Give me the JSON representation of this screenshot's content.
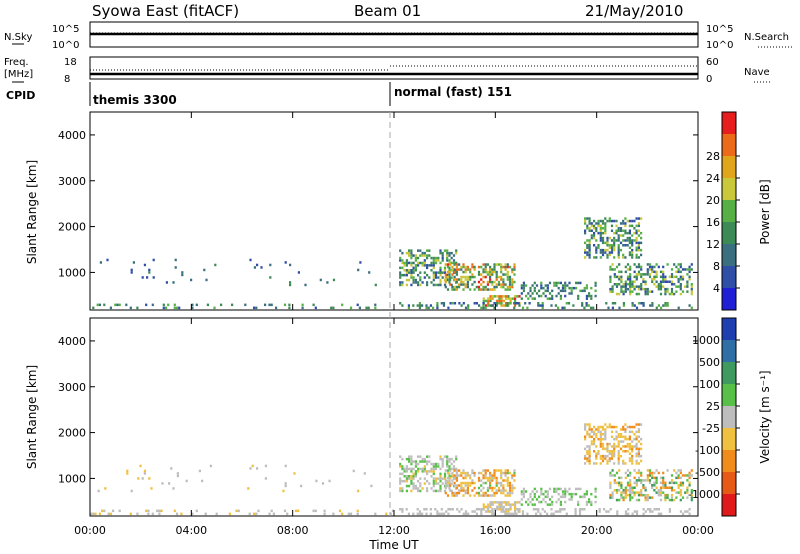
{
  "header": {
    "station": "Syowa East (fitACF)",
    "beam": "Beam 01",
    "date": "21/May/2010"
  },
  "top_panels": {
    "nsky_label": "N.Sky",
    "nsearch_label": "N.Search",
    "nsky_ticks": [
      "10^5",
      "10^0"
    ],
    "freq_label": "Freq.",
    "freq_unit": "[MHz]",
    "freq_ticks": [
      "18",
      "8"
    ],
    "nave_label": "Nave",
    "nave_ticks": [
      "60",
      "0"
    ],
    "cpid_label": "CPID",
    "cpid_segments": [
      {
        "name": "themis 3300",
        "start_hour": 0,
        "end_hour": 12
      },
      {
        "name": "normal (fast) 151",
        "start_hour": 12,
        "end_hour": 24
      }
    ]
  },
  "colors": {
    "power": [
      "#1f1fd6",
      "#2f4fa6",
      "#3a6f7f",
      "#3c8a55",
      "#56b046",
      "#c8c83a",
      "#e0a51a",
      "#ec6b1a",
      "#e61e1e"
    ],
    "velocity": [
      "#1f3fb0",
      "#2f6fa6",
      "#3f9a60",
      "#58c048",
      "#bdbdbd",
      "#f0c040",
      "#ef8c1c",
      "#e65a16",
      "#e01a1a"
    ]
  },
  "chart_data": [
    {
      "type": "heatmap",
      "panel": "power",
      "ylabel": "Slant Range [km]",
      "xlabel": "Time UT",
      "xlim": [
        0,
        24
      ],
      "ylim": [
        180,
        4500
      ],
      "x_ticks": [
        "00:00",
        "04:00",
        "08:00",
        "12:00",
        "16:00",
        "20:00",
        "00:00"
      ],
      "y_ticks": [
        "1000",
        "2000",
        "3000",
        "4000"
      ],
      "colorbar": {
        "label": "Power [dB]",
        "ticks": [
          "4",
          "8",
          "12",
          "16",
          "20",
          "24",
          "28"
        ],
        "range": [
          0,
          30
        ]
      },
      "regions": [
        {
          "t": [
            12.2,
            14.5
          ],
          "r": [
            700,
            1500
          ],
          "level": [
            4,
            20
          ],
          "density": 0.5
        },
        {
          "t": [
            14.0,
            16.8
          ],
          "r": [
            600,
            1200
          ],
          "level": [
            8,
            28
          ],
          "density": 0.55
        },
        {
          "t": [
            15.5,
            17.0
          ],
          "r": [
            250,
            500
          ],
          "level": [
            12,
            28
          ],
          "density": 0.6
        },
        {
          "t": [
            17.0,
            20.0
          ],
          "r": [
            400,
            800
          ],
          "level": [
            4,
            16
          ],
          "density": 0.35
        },
        {
          "t": [
            19.5,
            21.8
          ],
          "r": [
            1300,
            2200
          ],
          "level": [
            4,
            20
          ],
          "density": 0.5
        },
        {
          "t": [
            20.5,
            23.8
          ],
          "r": [
            500,
            1200
          ],
          "level": [
            4,
            20
          ],
          "density": 0.45
        },
        {
          "t": [
            12.2,
            23.8
          ],
          "r": [
            200,
            350
          ],
          "level": [
            4,
            16
          ],
          "density": 0.25
        },
        {
          "t": [
            0.0,
            12.0
          ],
          "r": [
            200,
            330
          ],
          "level": [
            4,
            16
          ],
          "density": 0.18
        },
        {
          "t": [
            0.3,
            11.5
          ],
          "r": [
            700,
            1300
          ],
          "level": [
            4,
            12
          ],
          "density": 0.03
        }
      ]
    },
    {
      "type": "heatmap",
      "panel": "velocity",
      "ylabel": "Slant Range [km]",
      "xlabel": "Time UT",
      "xlim": [
        0,
        24
      ],
      "ylim": [
        180,
        4500
      ],
      "x_ticks": [
        "00:00",
        "04:00",
        "08:00",
        "12:00",
        "16:00",
        "20:00",
        "00:00"
      ],
      "y_ticks": [
        "1000",
        "2000",
        "3000",
        "4000"
      ],
      "colorbar": {
        "label": "Velocity [m s⁻¹]",
        "ticks": [
          "1000",
          "500",
          "100",
          "25",
          "-25",
          "-100",
          "-500",
          "-1000"
        ],
        "range": [
          1200,
          -1200
        ]
      },
      "regions": [
        {
          "t": [
            12.2,
            14.5
          ],
          "r": [
            700,
            1500
          ],
          "level": [
            -200,
            300
          ],
          "density": 0.5
        },
        {
          "t": [
            14.0,
            16.8
          ],
          "r": [
            600,
            1200
          ],
          "level": [
            -600,
            200
          ],
          "density": 0.55
        },
        {
          "t": [
            15.5,
            17.0
          ],
          "r": [
            250,
            500
          ],
          "level": [
            -300,
            100
          ],
          "density": 0.6
        },
        {
          "t": [
            17.0,
            20.0
          ],
          "r": [
            400,
            800
          ],
          "level": [
            -100,
            300
          ],
          "density": 0.35
        },
        {
          "t": [
            19.5,
            21.8
          ],
          "r": [
            1300,
            2200
          ],
          "level": [
            -500,
            50
          ],
          "density": 0.5
        },
        {
          "t": [
            20.5,
            23.8
          ],
          "r": [
            500,
            1200
          ],
          "level": [
            -600,
            600
          ],
          "density": 0.45
        },
        {
          "t": [
            12.2,
            23.8
          ],
          "r": [
            200,
            350
          ],
          "level": [
            -50,
            50
          ],
          "density": 0.3
        },
        {
          "t": [
            0.0,
            12.0
          ],
          "r": [
            200,
            330
          ],
          "level": [
            -200,
            20
          ],
          "density": 0.22
        },
        {
          "t": [
            0.3,
            11.5
          ],
          "r": [
            700,
            1300
          ],
          "level": [
            -200,
            100
          ],
          "density": 0.03
        }
      ]
    }
  ]
}
